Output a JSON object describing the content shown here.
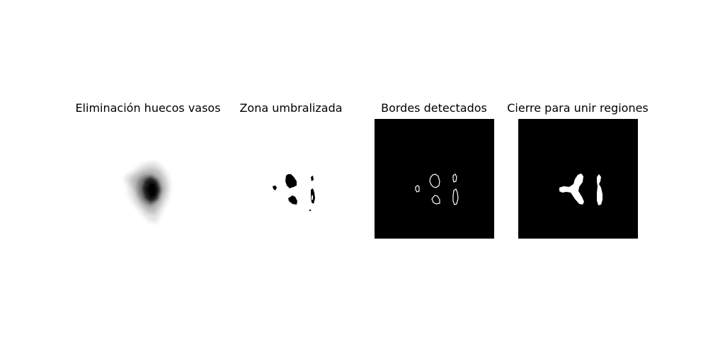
{
  "panels": [
    {
      "title": "Eliminación huecos vasos"
    },
    {
      "title": "Zona umbralizada"
    },
    {
      "title": "Bordes detectados"
    },
    {
      "title": "Cierre para unir regiones"
    }
  ],
  "colors": {
    "background": "#ffffff",
    "image_black": "#000000",
    "image_white": "#ffffff"
  }
}
